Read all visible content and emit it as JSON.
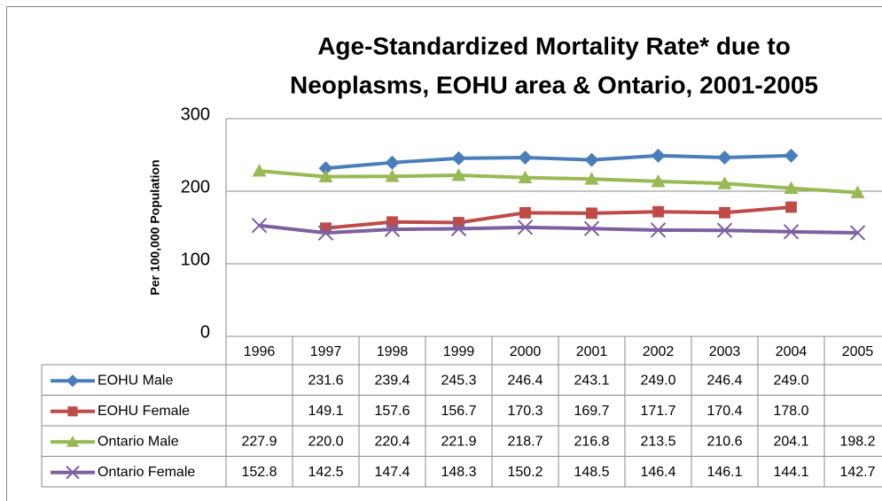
{
  "chart_data": {
    "type": "line",
    "title": [
      "Age-Standardized Mortality Rate* due to",
      "Neoplasms, EOHU area & Ontario, 2001-2005"
    ],
    "y_label": "Per 100,000 Population",
    "categories": [
      "1996",
      "1997",
      "1998",
      "1999",
      "2000",
      "2001",
      "2002",
      "2003",
      "2004",
      "2005"
    ],
    "series": [
      {
        "name": "EOHU Male",
        "color": "#4a7ebb",
        "marker": "diamond",
        "values": [
          null,
          231.6,
          239.4,
          245.3,
          246.4,
          243.1,
          249,
          246.4,
          249,
          null
        ],
        "value_labels": [
          null,
          "231.6",
          "239.4",
          "245.3",
          "246.4",
          "243.1",
          "249.0",
          "246.4",
          "249.0",
          null
        ]
      },
      {
        "name": "EOHU Female",
        "color": "#be4b48",
        "marker": "square",
        "values": [
          null,
          149.1,
          157.6,
          156.7,
          170.3,
          169.7,
          171.7,
          170.4,
          178,
          null
        ],
        "value_labels": [
          null,
          "149.1",
          "157.6",
          "156.7",
          "170.3",
          "169.7",
          "171.7",
          "170.4",
          "178.0",
          null
        ]
      },
      {
        "name": "Ontario Male",
        "color": "#98b954",
        "marker": "triangle",
        "values": [
          227.9,
          220,
          220.4,
          221.9,
          218.7,
          216.8,
          213.5,
          210.6,
          204.1,
          198.2
        ],
        "value_labels": [
          "227.9",
          "220.0",
          "220.4",
          "221.9",
          "218.7",
          "216.8",
          "213.5",
          "210.6",
          "204.1",
          "198.2"
        ]
      },
      {
        "name": "Ontario Female",
        "color": "#7d60a0",
        "marker": "x",
        "values": [
          152.8,
          142.5,
          147.4,
          148.3,
          150.2,
          148.5,
          146.4,
          146.1,
          144.1,
          142.7
        ],
        "value_labels": [
          "152.8",
          "142.5",
          "147.4",
          "148.3",
          "150.2",
          "148.5",
          "146.4",
          "146.1",
          "144.1",
          "142.7"
        ]
      }
    ],
    "ylim": [
      0,
      300
    ],
    "yticks": [
      0,
      100,
      200,
      300
    ],
    "grid": true
  }
}
